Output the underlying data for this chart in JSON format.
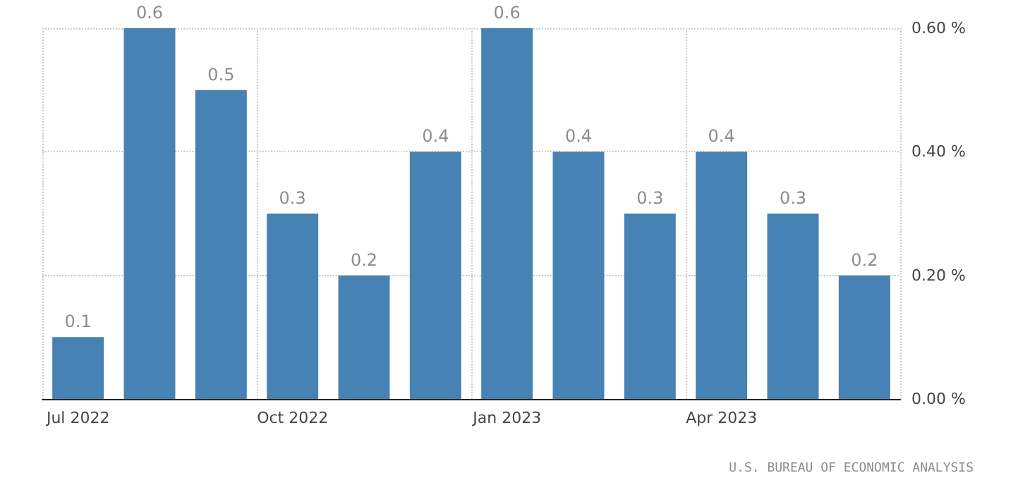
{
  "chart_data": {
    "type": "bar",
    "categories": [
      "Jul 2022",
      null,
      null,
      "Oct 2022",
      null,
      null,
      "Jan 2023",
      null,
      null,
      "Apr 2023",
      null,
      null
    ],
    "values": [
      0.1,
      0.6,
      0.5,
      0.3,
      0.2,
      0.4,
      0.6,
      0.4,
      0.3,
      0.4,
      0.3,
      0.2
    ],
    "color": "#4682b4",
    "ylim": [
      0,
      0.6
    ],
    "yticks": [
      {
        "value": 0,
        "label": "0.00 %"
      },
      {
        "value": 0.2,
        "label": "0.20 %"
      },
      {
        "value": 0.4,
        "label": "0.40 %"
      },
      {
        "value": 0.6,
        "label": "0.60 %"
      }
    ],
    "grid": true,
    "data_labels": true,
    "annotations": [
      "U.S. BUREAU OF ECONOMIC ANALYSIS"
    ]
  }
}
